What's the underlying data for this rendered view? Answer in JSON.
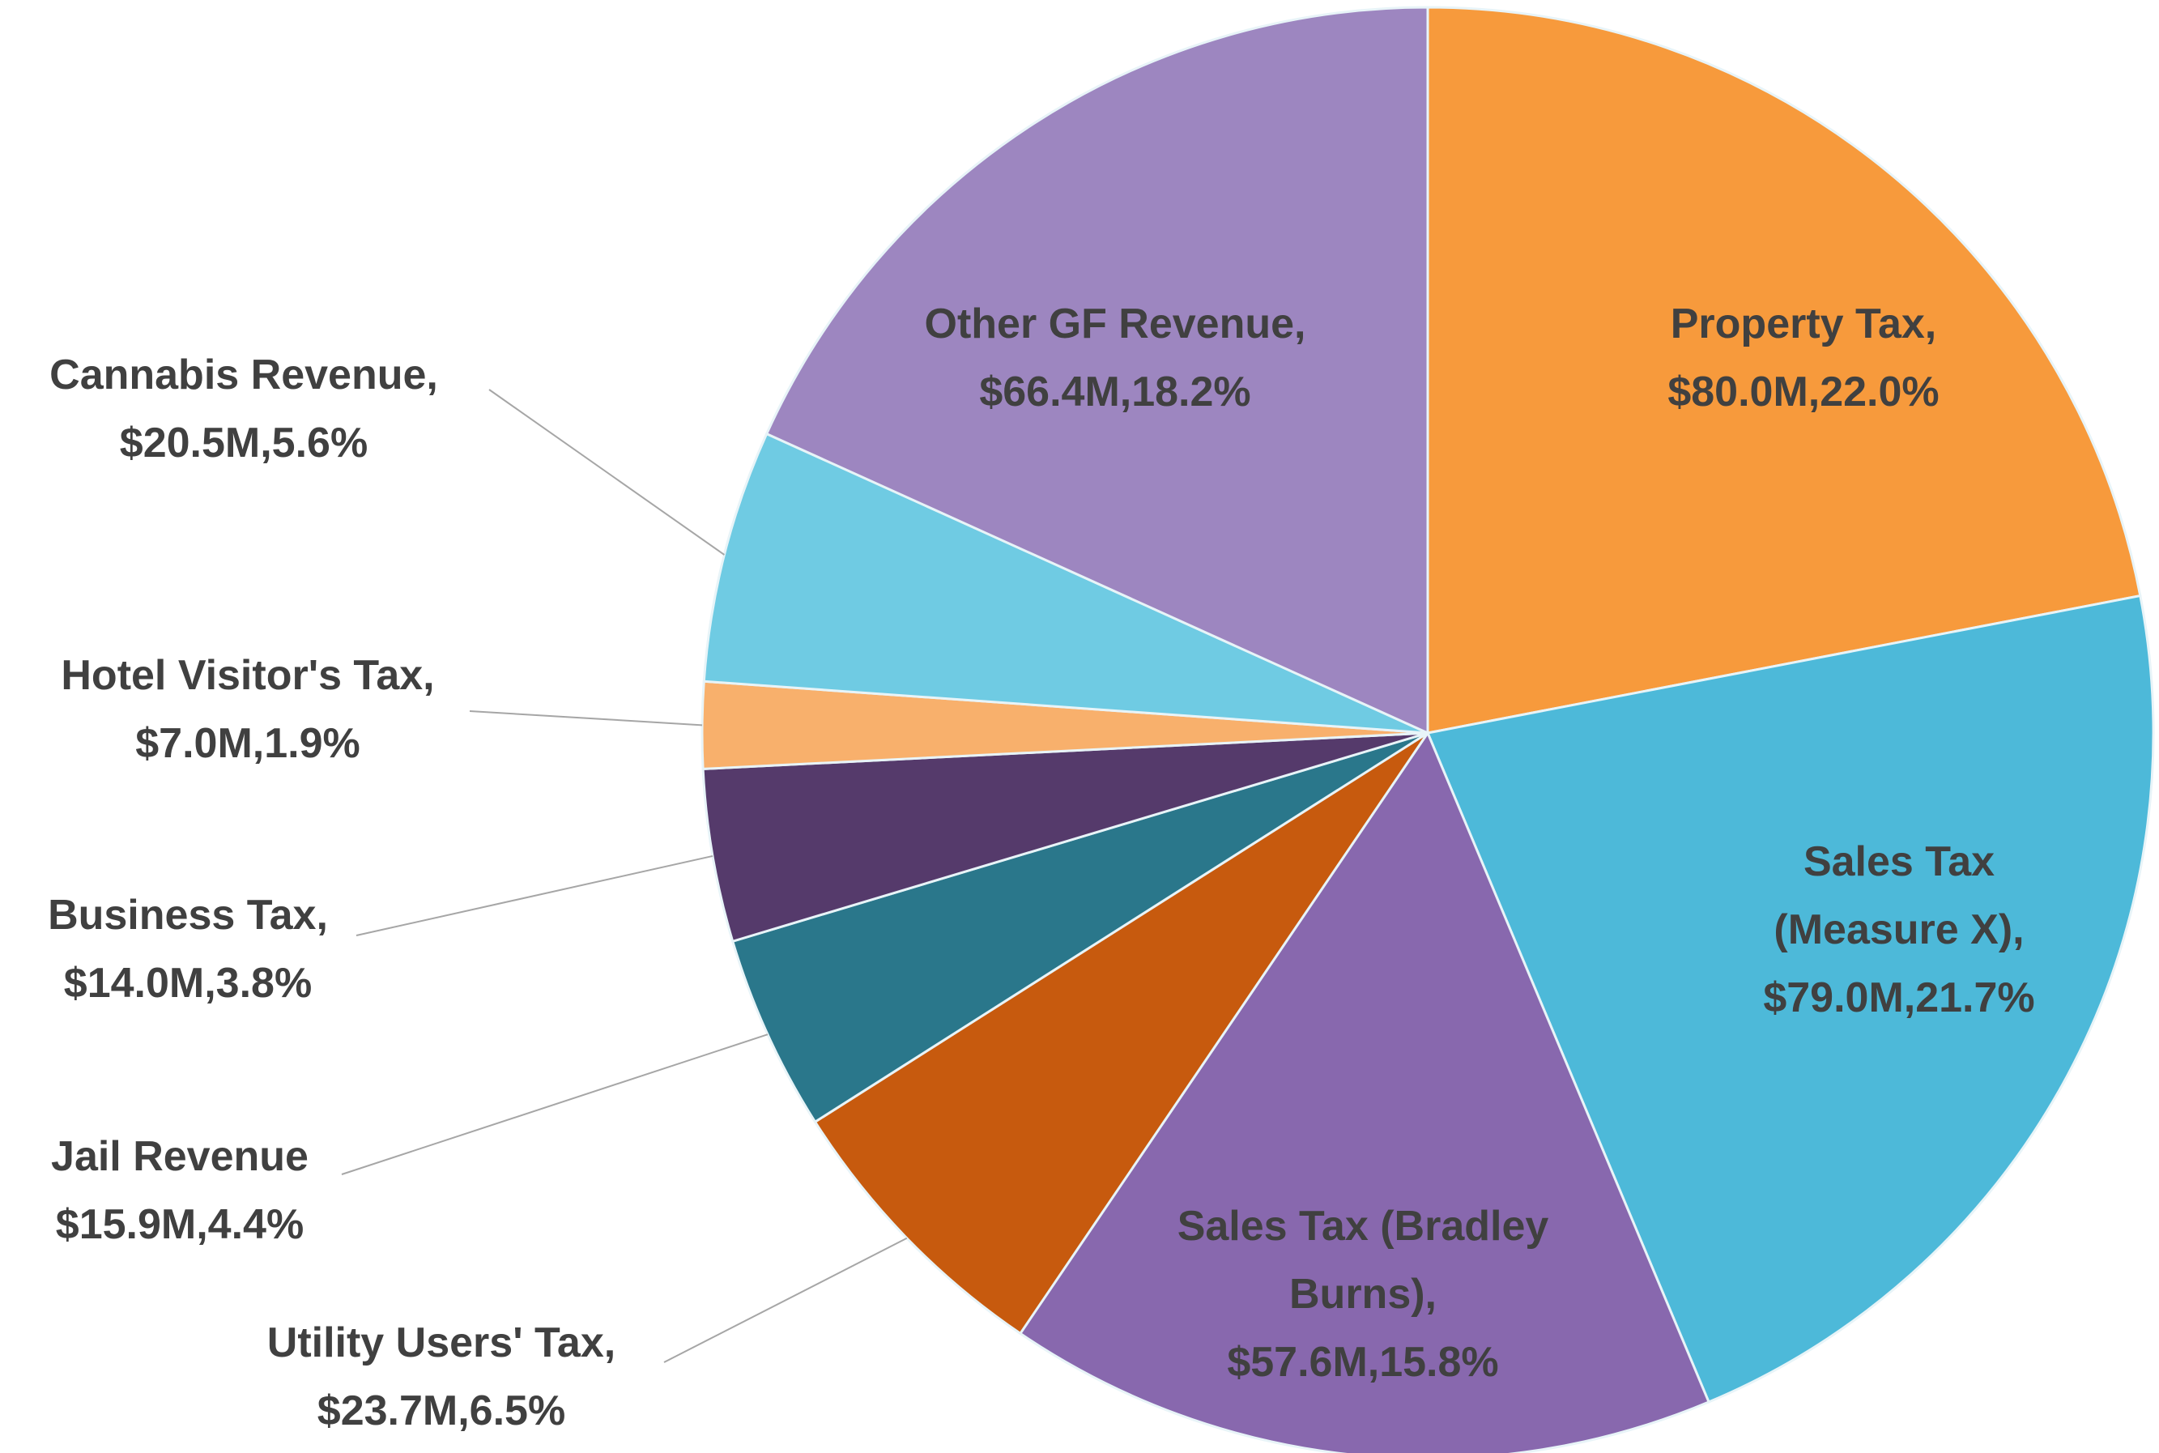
{
  "chart_data": {
    "type": "pie",
    "categories": [
      "Property Tax,",
      "Sales Tax (Measure X),",
      "Sales Tax (Bradley Burns),",
      "Utility Users' Tax,",
      "Jail Revenue",
      "Business Tax,",
      "Hotel Visitor's Tax,",
      "Cannabis Revenue,",
      "Other GF Revenue,"
    ],
    "values": [
      80.0,
      79.0,
      57.6,
      23.7,
      15.9,
      14.0,
      7.0,
      20.5,
      66.4
    ],
    "percentages": [
      22.0,
      21.7,
      15.8,
      6.5,
      4.4,
      3.8,
      1.9,
      5.6,
      18.2
    ],
    "value_labels": [
      "$80.0M,22.0%",
      "$79.0M,21.7%",
      "$57.6M,15.8%",
      "$23.7M,6.5%",
      "$15.9M,4.4%",
      "$14.0M,3.8%",
      "$7.0M,1.9%",
      "$20.5M,5.6%",
      "$66.4M,18.2%"
    ],
    "colors": [
      "#f79a3c",
      "#4db9d9",
      "#8868ae",
      "#c75a0e",
      "#2a778b",
      "#553a6b",
      "#f8b06c",
      "#6fcbe3",
      "#9d86c0"
    ]
  }
}
